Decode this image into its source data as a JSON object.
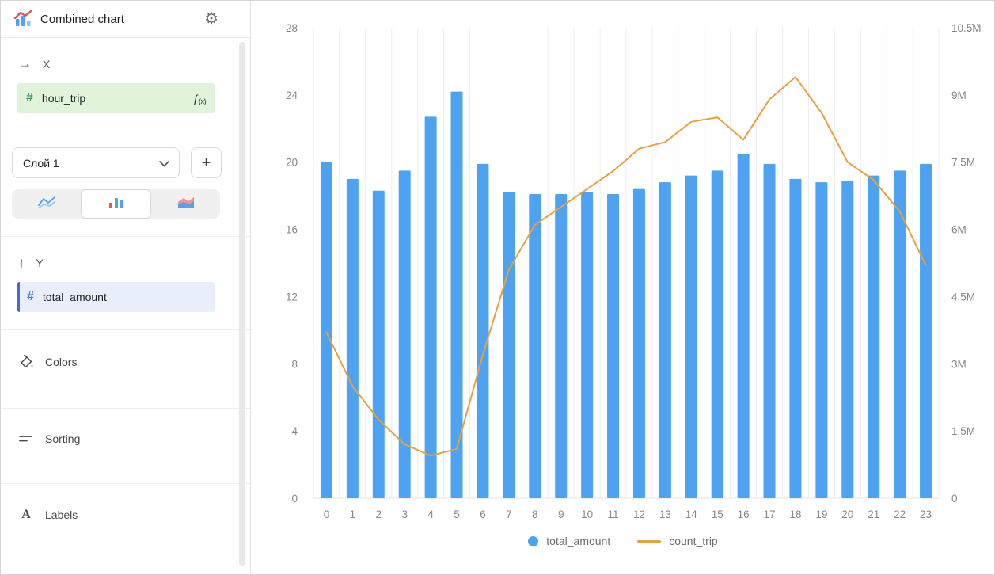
{
  "app": {
    "title": "Combined chart"
  },
  "icons": {
    "gear": "⚙",
    "more": "⋯",
    "plus": "+",
    "arrow_right": "→",
    "arrow_up": "↑",
    "hash": "#",
    "fx": "ƒ",
    "fx_sub": "(x)",
    "labels_a": "A"
  },
  "sidebar": {
    "x_section": {
      "label": "X",
      "field": "hour_trip"
    },
    "layer": {
      "selected": "Слой 1"
    },
    "y_section": {
      "label": "Y",
      "field": "total_amount"
    },
    "colors_label": "Colors",
    "sorting_label": "Sorting",
    "labels_label": "Labels"
  },
  "chart_data": {
    "type": "combo",
    "categories": [
      "0",
      "1",
      "2",
      "3",
      "4",
      "5",
      "6",
      "7",
      "8",
      "9",
      "10",
      "11",
      "12",
      "13",
      "14",
      "15",
      "16",
      "17",
      "18",
      "19",
      "20",
      "21",
      "22",
      "23"
    ],
    "series": [
      {
        "name": "total_amount",
        "type": "bar",
        "axis": "left",
        "color": "#4DA2F1",
        "values": [
          20.0,
          19.0,
          18.3,
          19.5,
          22.7,
          24.2,
          19.9,
          18.2,
          18.1,
          18.1,
          18.2,
          18.1,
          18.4,
          18.8,
          19.2,
          19.5,
          20.5,
          19.9,
          19.0,
          18.8,
          18.9,
          19.2,
          19.5,
          19.9
        ]
      },
      {
        "name": "count_trip",
        "type": "line",
        "axis": "right",
        "unit": "M",
        "color": "#E8A13C",
        "values": [
          3.7,
          2.5,
          1.75,
          1.2,
          0.95,
          1.1,
          3.2,
          5.1,
          6.1,
          6.5,
          6.9,
          7.3,
          7.8,
          7.95,
          8.4,
          8.5,
          8.0,
          8.9,
          9.4,
          8.6,
          7.5,
          7.1,
          6.4,
          5.2
        ]
      }
    ],
    "left_axis": {
      "min": 0,
      "max": 28,
      "ticks": [
        0,
        4,
        8,
        12,
        16,
        20,
        24,
        28
      ]
    },
    "right_axis": {
      "min": 0,
      "max": 10.5,
      "ticks": [
        0,
        1.5,
        3,
        4.5,
        6,
        7.5,
        9,
        10.5
      ],
      "tick_labels": [
        "0",
        "1.5M",
        "3M",
        "4.5M",
        "6M",
        "7.5M",
        "9M",
        "10.5M"
      ]
    },
    "grid": "vertical",
    "legend_position": "bottom",
    "legend": [
      {
        "label": "total_amount",
        "marker": "circle",
        "color": "#4DA2F1"
      },
      {
        "label": "count_trip",
        "marker": "line",
        "color": "#E8A13C"
      }
    ]
  }
}
